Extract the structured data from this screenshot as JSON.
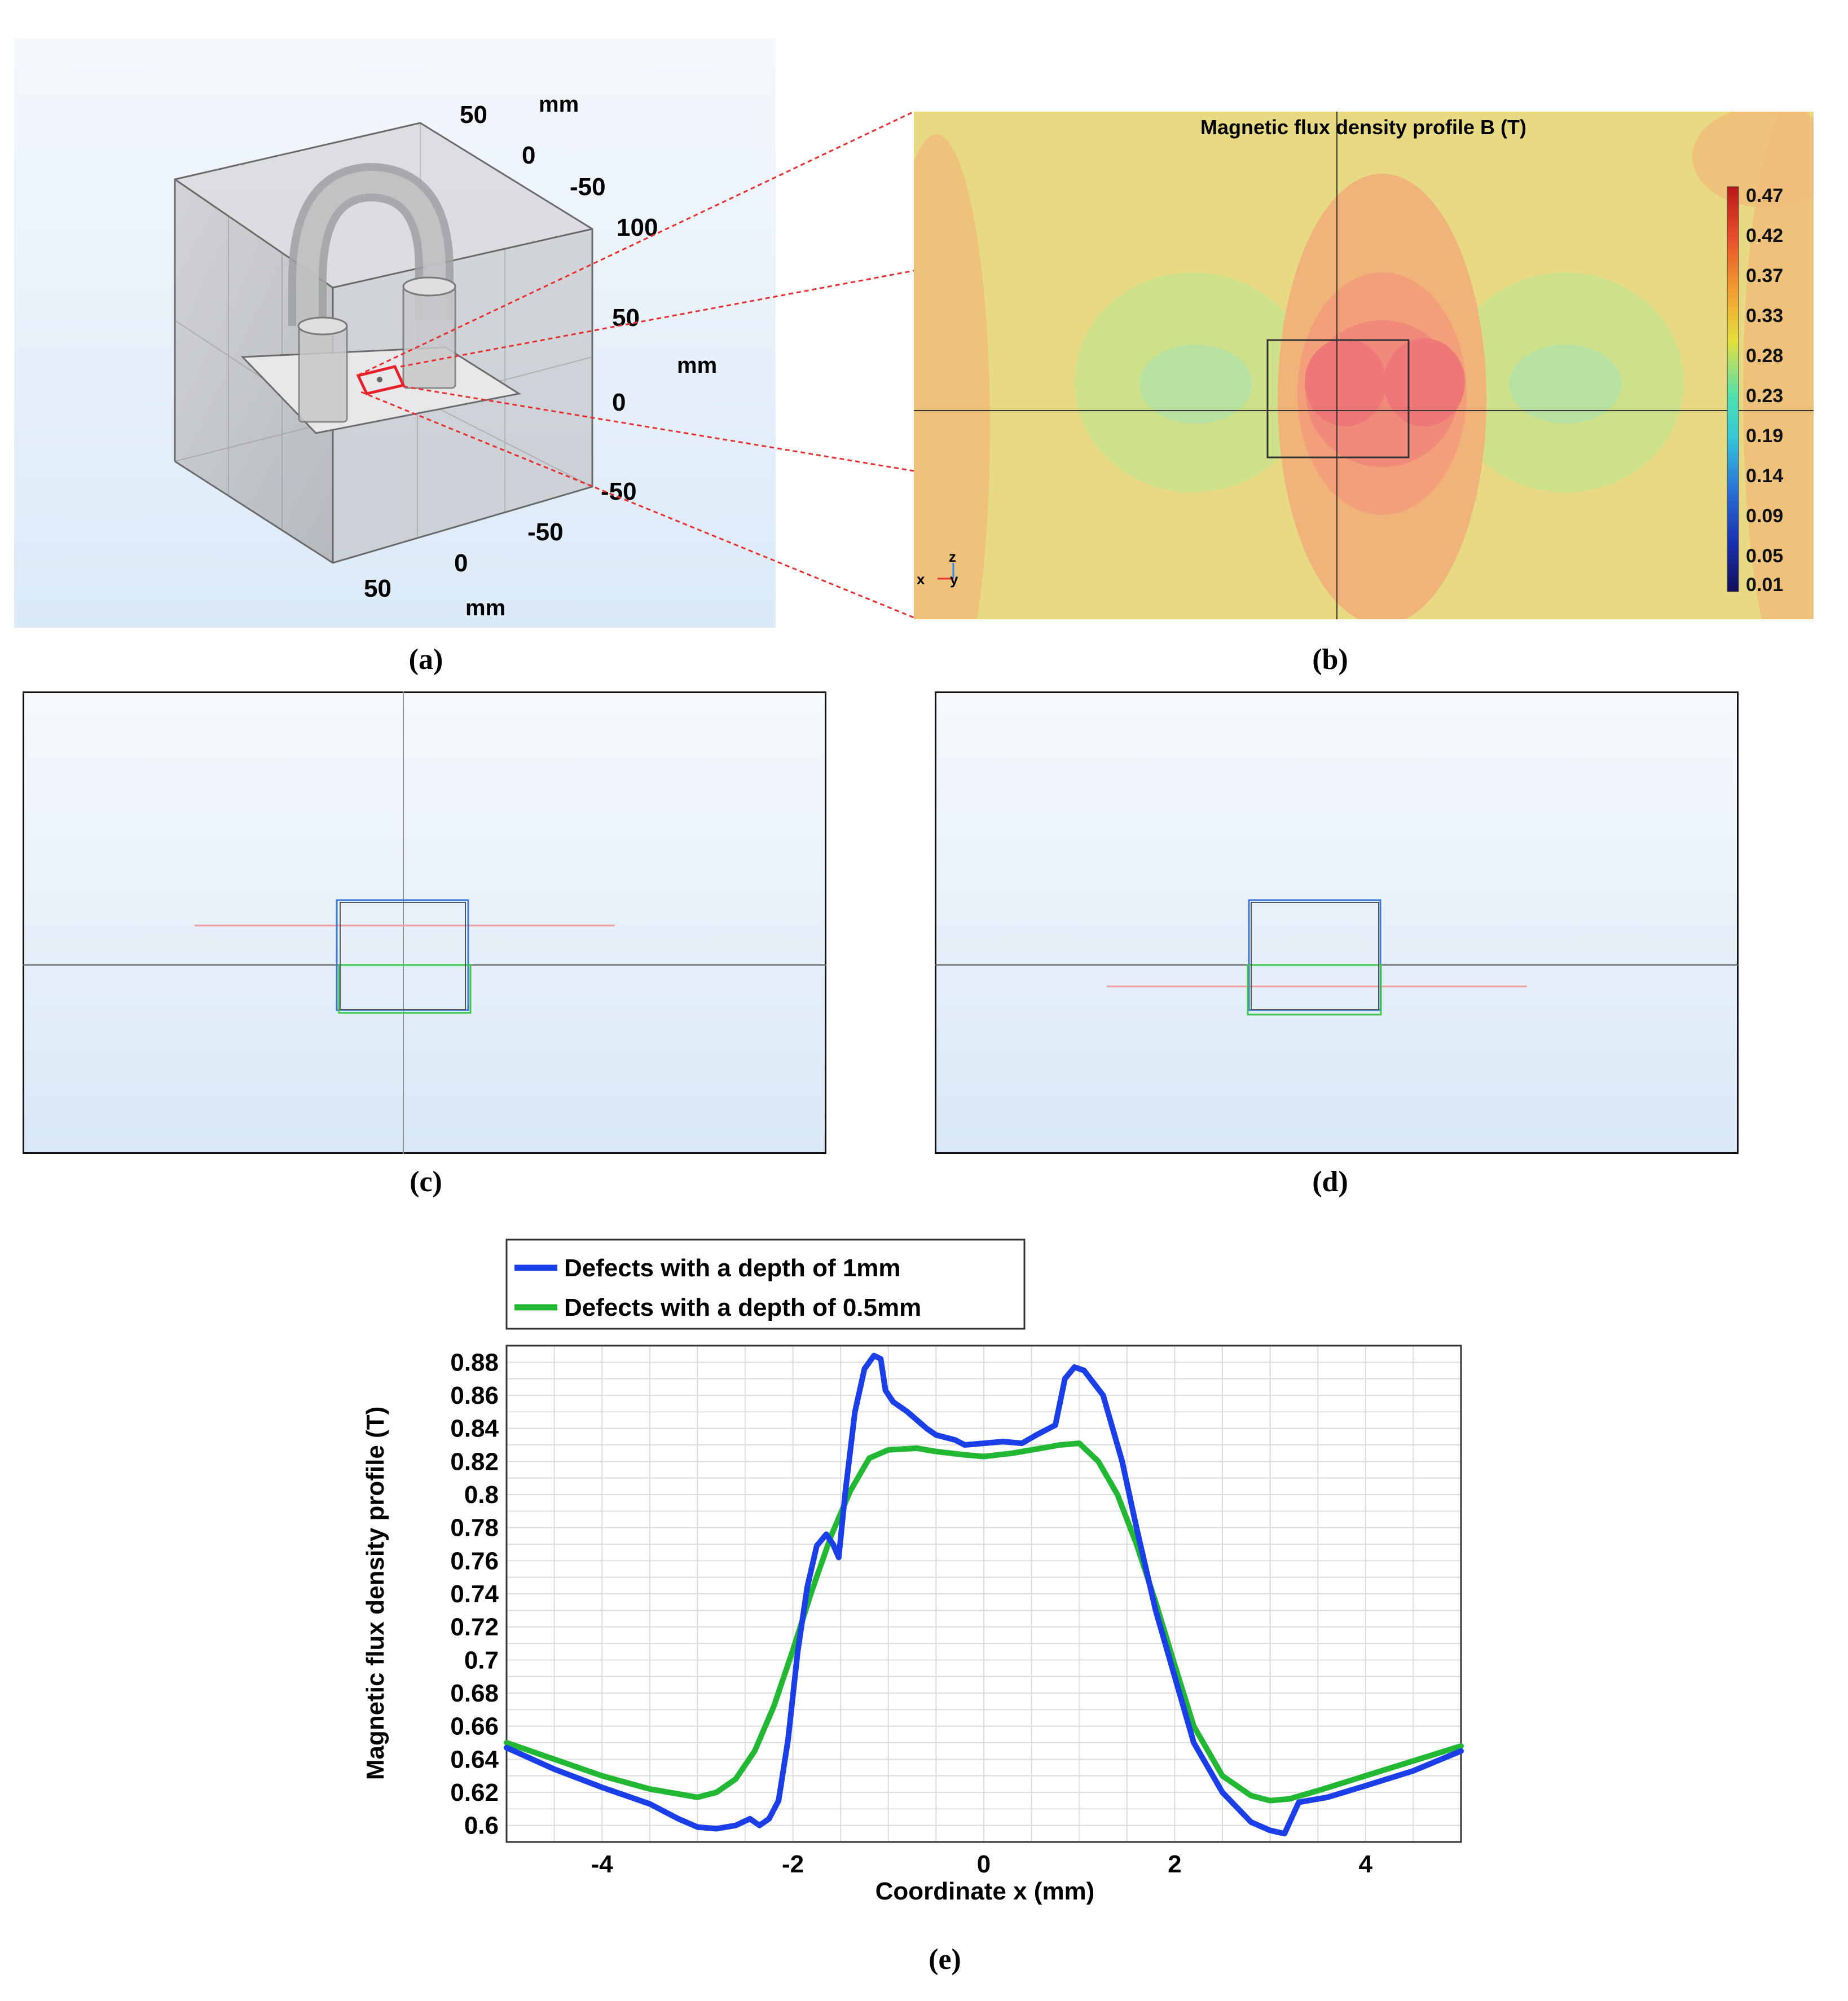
{
  "captions": {
    "a": "(a)",
    "b": "(b)",
    "c": "(c)",
    "d": "(d)",
    "e": "(e)"
  },
  "panel_a": {
    "unit_label_top": "mm",
    "unit_label_right": "mm",
    "unit_label_bottom": "mm",
    "y_axis_ticks": [
      "50",
      "0",
      "-50"
    ],
    "z_axis_ticks": [
      "100",
      "50",
      "0",
      "-50"
    ],
    "x_axis_ticks": [
      "-50",
      "0",
      "50"
    ]
  },
  "panel_b": {
    "title": "Magnetic flux density profile B (T)",
    "colorbar_ticks": [
      "0.47",
      "0.42",
      "0.37",
      "0.33",
      "0.28",
      "0.23",
      "0.19",
      "0.14",
      "0.09",
      "0.05",
      "0.01"
    ],
    "axis_triad": {
      "z": "z",
      "x": "x",
      "y": "y"
    }
  },
  "colors": {
    "series_1mm": "#1a3ee8",
    "series_05mm": "#22b833",
    "defect_outline": "#e8202a",
    "connector": "#e83030"
  },
  "chart_data": {
    "type": "line",
    "title": "",
    "xlabel": "Coordinate x  (mm)",
    "ylabel": "Magnetic flux density profile (T)",
    "xlim": [
      -5,
      5
    ],
    "ylim": [
      0.59,
      0.89
    ],
    "xticks": [
      -4,
      -2,
      0,
      2,
      4
    ],
    "xtick_labels": [
      "-4",
      "-2",
      "0",
      "2",
      "4"
    ],
    "yticks": [
      0.6,
      0.62,
      0.64,
      0.66,
      0.68,
      0.7,
      0.72,
      0.74,
      0.76,
      0.78,
      0.8,
      0.82,
      0.84,
      0.86,
      0.88
    ],
    "ytick_labels": [
      "0.6",
      "0.62",
      "0.64",
      "0.66",
      "0.68",
      "0.7",
      "0.72",
      "0.74",
      "0.76",
      "0.78",
      "0.8",
      "0.82",
      "0.84",
      "0.86",
      "0.88"
    ],
    "grid": true,
    "legend_position": "top-left, above plot",
    "series": [
      {
        "name": "Defects with a depth of 1mm",
        "color": "#1a3ee8",
        "x": [
          -5.0,
          -4.5,
          -4.0,
          -3.5,
          -3.2,
          -3.0,
          -2.8,
          -2.6,
          -2.45,
          -2.35,
          -2.25,
          -2.15,
          -2.05,
          -1.95,
          -1.85,
          -1.75,
          -1.65,
          -1.58,
          -1.52,
          -1.45,
          -1.35,
          -1.25,
          -1.15,
          -1.08,
          -1.03,
          -0.95,
          -0.8,
          -0.6,
          -0.5,
          -0.3,
          -0.2,
          0.0,
          0.2,
          0.4,
          0.55,
          0.75,
          0.85,
          0.95,
          1.05,
          1.25,
          1.45,
          1.6,
          1.8,
          2.0,
          2.2,
          2.5,
          2.8,
          3.0,
          3.15,
          3.3,
          3.6,
          4.0,
          4.5,
          5.0
        ],
        "y": [
          0.647,
          0.634,
          0.623,
          0.613,
          0.604,
          0.599,
          0.598,
          0.6,
          0.604,
          0.6,
          0.604,
          0.615,
          0.652,
          0.705,
          0.744,
          0.769,
          0.776,
          0.77,
          0.762,
          0.802,
          0.85,
          0.876,
          0.884,
          0.882,
          0.863,
          0.856,
          0.85,
          0.84,
          0.836,
          0.833,
          0.83,
          0.831,
          0.832,
          0.831,
          0.836,
          0.842,
          0.87,
          0.877,
          0.875,
          0.86,
          0.82,
          0.78,
          0.73,
          0.69,
          0.65,
          0.62,
          0.602,
          0.597,
          0.595,
          0.614,
          0.617,
          0.624,
          0.633,
          0.645
        ]
      },
      {
        "name": "Defects with a depth of 0.5mm",
        "color": "#22b833",
        "x": [
          -5.0,
          -4.5,
          -4.0,
          -3.5,
          -3.0,
          -2.8,
          -2.6,
          -2.4,
          -2.2,
          -2.0,
          -1.8,
          -1.6,
          -1.4,
          -1.2,
          -1.0,
          -0.7,
          -0.5,
          -0.2,
          0.0,
          0.3,
          0.6,
          0.8,
          1.0,
          1.2,
          1.4,
          1.6,
          1.8,
          2.0,
          2.2,
          2.5,
          2.8,
          3.0,
          3.2,
          3.5,
          4.0,
          4.5,
          5.0
        ],
        "y": [
          0.65,
          0.64,
          0.63,
          0.622,
          0.617,
          0.62,
          0.628,
          0.645,
          0.672,
          0.706,
          0.742,
          0.775,
          0.802,
          0.822,
          0.827,
          0.828,
          0.826,
          0.824,
          0.823,
          0.825,
          0.828,
          0.83,
          0.831,
          0.82,
          0.8,
          0.77,
          0.735,
          0.697,
          0.66,
          0.63,
          0.618,
          0.615,
          0.616,
          0.621,
          0.63,
          0.639,
          0.648
        ]
      }
    ]
  }
}
